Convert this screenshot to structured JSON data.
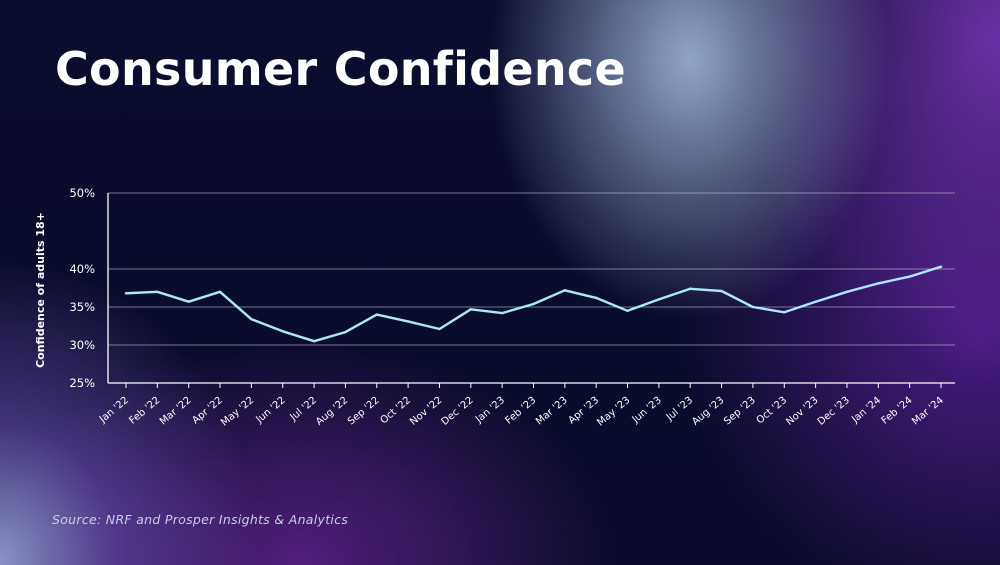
{
  "title": "Consumer Confidence",
  "source": "Source: NRF and Prosper Insights & Analytics",
  "colors": {
    "line": "#a9e8ff",
    "grid": "#c8c8dc",
    "text": "#ffffff"
  },
  "chart_data": {
    "type": "line",
    "ylabel": "Confidence of adults 18+",
    "xlabel": "",
    "ylim": [
      25,
      50
    ],
    "yticks": [
      25,
      30,
      35,
      40,
      50
    ],
    "ytick_labels": [
      "25%",
      "30%",
      "35%",
      "40%",
      "50%"
    ],
    "grid": true,
    "categories": [
      "Jan '22",
      "Feb '22",
      "Mar '22",
      "Apr '22",
      "May '22",
      "Jun '22",
      "Jul '22",
      "Aug '22",
      "Sep '22",
      "Oct '22",
      "Nov '22",
      "Dec '22",
      "Jan '23",
      "Feb '23",
      "Mar '23",
      "Apr '23",
      "May '23",
      "Jun '23",
      "Jul '23",
      "Aug '23",
      "Sep '23",
      "Oct '23",
      "Nov '23",
      "Dec '23",
      "Jan '24",
      "Feb '24",
      "Mar '24"
    ],
    "series": [
      {
        "values": [
          36.8,
          37.0,
          35.7,
          37.0,
          33.4,
          31.8,
          30.5,
          31.7,
          34.0,
          33.1,
          32.1,
          34.7,
          34.2,
          35.4,
          37.2,
          36.2,
          34.5,
          36.0,
          37.4,
          37.1,
          35.0,
          34.3,
          35.7,
          37.0,
          38.1,
          39.0,
          40.3
        ]
      }
    ]
  }
}
